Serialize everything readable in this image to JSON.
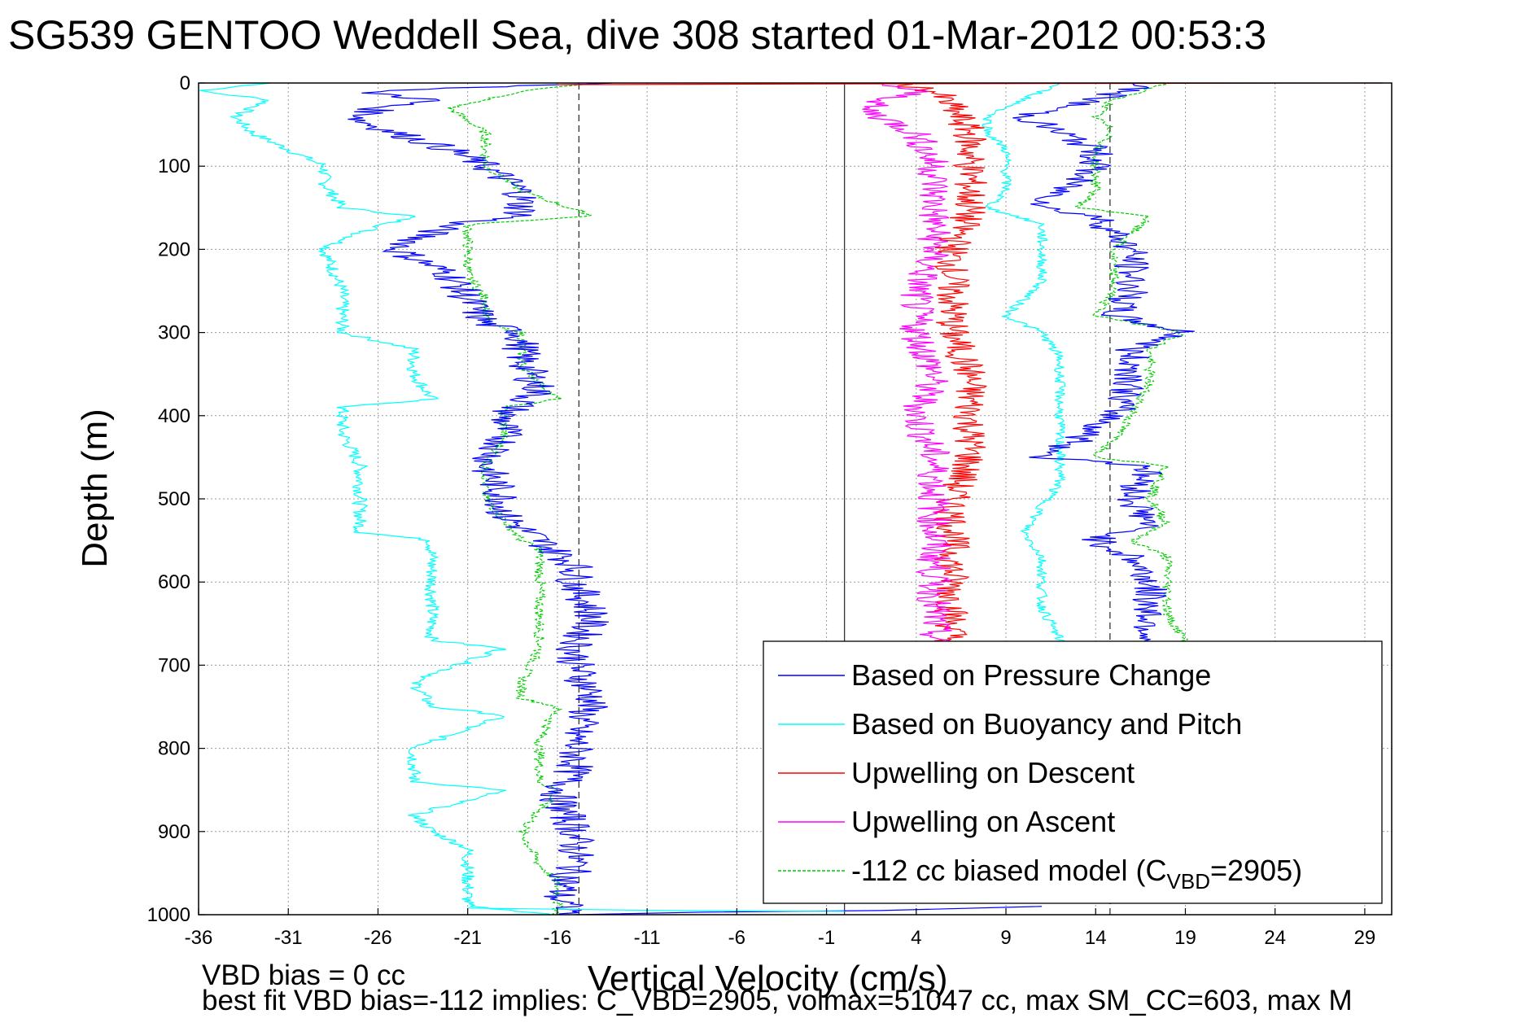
{
  "chart_data": {
    "type": "line",
    "title": "SG539 GENTOO Weddell Sea, dive 308 started 01-Mar-2012 00:53:3",
    "xlabel": "Vertical Velocity (cm/s)",
    "ylabel": "Depth (m)",
    "xlim": [
      -36,
      30.5
    ],
    "ylim": [
      0,
      1000
    ],
    "y_reversed": true,
    "grid": true,
    "x_ticks": [
      "-36",
      "-31",
      "-26",
      "-21",
      "-16",
      "-11",
      "-6",
      "-1",
      "4",
      "9",
      "14",
      "19",
      "24",
      "29"
    ],
    "y_ticks": [
      "0",
      "100",
      "200",
      "300",
      "400",
      "500",
      "600",
      "700",
      "800",
      "900",
      "1000"
    ],
    "legend_position": "bottom-right",
    "reference_lines": [
      {
        "x": -14.8,
        "style": "dashed"
      },
      {
        "x": 0,
        "style": "solid"
      },
      {
        "x": 14.8,
        "style": "dashed"
      }
    ],
    "series": [
      {
        "name": "Based on Pressure Change",
        "color": "#0000ff",
        "depth": [
          0,
          10,
          20,
          30,
          45,
          60,
          80,
          100,
          130,
          160,
          170,
          200,
          230,
          260,
          290,
          300,
          330,
          370,
          400,
          430,
          460,
          500,
          520,
          550,
          580,
          600,
          640,
          680,
          700,
          740,
          780,
          820,
          860,
          900,
          940,
          980,
          1000
        ],
        "values": [
          -13,
          -27,
          -23,
          -26,
          -27,
          -25,
          -22,
          -20,
          -18,
          -18,
          -22,
          -25,
          -22,
          -21,
          -20,
          -18,
          -18,
          -17,
          -19,
          -19,
          -20,
          -19,
          -19,
          -17,
          -15,
          -15,
          -14,
          -15,
          -15,
          -14,
          -15,
          -15,
          -16,
          -15,
          -15,
          -16,
          -15
        ]
      },
      {
        "name": "Based on Buoyancy and Pitch",
        "color": "#00ffff",
        "depth": [
          0,
          10,
          20,
          40,
          60,
          80,
          100,
          120,
          150,
          160,
          180,
          200,
          250,
          300,
          320,
          350,
          380,
          390,
          420,
          460,
          500,
          540,
          550,
          600,
          670,
          680,
          720,
          750,
          760,
          800,
          840,
          850,
          880,
          900,
          920,
          960,
          990,
          1000
        ],
        "values": [
          -32,
          -36,
          -32,
          -34,
          -33,
          -31,
          -29,
          -29,
          -28,
          -24,
          -27,
          -29,
          -28,
          -28,
          -24,
          -24,
          -23,
          -28,
          -28,
          -27,
          -27,
          -27,
          -23,
          -23,
          -23,
          -19,
          -24,
          -23,
          -19,
          -24,
          -24,
          -19,
          -24,
          -23,
          -21,
          -21,
          -21,
          -16
        ]
      },
      {
        "name": "Upwelling on Descent",
        "color": "#ff0000",
        "depth": [
          0,
          10,
          30,
          60,
          100,
          150,
          200,
          250,
          300,
          350,
          400,
          450,
          500,
          550,
          600,
          650,
          680
        ],
        "values": [
          3,
          5,
          6,
          7,
          7,
          7,
          6,
          6,
          6,
          7,
          7,
          7,
          6,
          6,
          6,
          6,
          6
        ]
      },
      {
        "name": "Upwelling on Ascent",
        "color": "#ff00ff",
        "depth": [
          0,
          10,
          30,
          60,
          100,
          150,
          200,
          250,
          300,
          350,
          400,
          450,
          500,
          550,
          600,
          650,
          680
        ],
        "values": [
          2,
          4,
          1,
          4,
          5,
          5,
          5,
          4,
          4,
          5,
          4,
          5,
          5,
          5,
          5,
          5,
          5
        ]
      },
      {
        "name": "-112 cc biased model (C",
        "name_sub": "VBD",
        "name_end": "=2905)",
        "color": "#00cc00",
        "depth": [
          0,
          10,
          30,
          60,
          100,
          130,
          160,
          170,
          200,
          230,
          260,
          290,
          300,
          340,
          380,
          390,
          430,
          460,
          500,
          550,
          560,
          600,
          660,
          680,
          720,
          740,
          750,
          790,
          840,
          850,
          900,
          940,
          960,
          1000
        ],
        "values": [
          -14,
          -18,
          -22,
          -20,
          -20,
          -18,
          -14,
          -21,
          -21,
          -21,
          -20,
          -20,
          -18,
          -18,
          -16,
          -19,
          -19,
          -20,
          -20,
          -18,
          -17,
          -17,
          -17,
          -17,
          -18,
          -18,
          -16,
          -17,
          -17,
          -16,
          -18,
          -17,
          -16,
          -16
        ]
      }
    ],
    "right_group": {
      "blue_depth": [
        0,
        20,
        40,
        60,
        80,
        100,
        130,
        150,
        160,
        200,
        250,
        280,
        300,
        320,
        360,
        400,
        430,
        450,
        460,
        500,
        530,
        550,
        570,
        600,
        640,
        670,
        680
      ],
      "blue_values": [
        17,
        14,
        10,
        12,
        14,
        14,
        12,
        11,
        14,
        16,
        16,
        15,
        19,
        16,
        16,
        15,
        13,
        11,
        17,
        16,
        17,
        14,
        16,
        17,
        17,
        17,
        14
      ],
      "cyan_depth": [
        0,
        40,
        60,
        80,
        100,
        130,
        150,
        170,
        200,
        240,
        280,
        300,
        330,
        370,
        400,
        440,
        480,
        510,
        540,
        570,
        600,
        630,
        670,
        680
      ],
      "cyan_values": [
        12,
        8,
        8,
        9,
        9,
        9,
        8,
        11,
        11,
        11,
        9,
        11,
        12,
        12,
        12,
        12,
        12,
        11,
        10,
        11,
        11,
        11,
        12,
        12
      ],
      "green_depth": [
        0,
        20,
        40,
        60,
        80,
        100,
        130,
        150,
        160,
        200,
        250,
        280,
        300,
        320,
        360,
        400,
        430,
        450,
        460,
        500,
        530,
        550,
        570,
        600,
        640,
        670,
        680
      ],
      "green_values": [
        18,
        15,
        14,
        15,
        14,
        14,
        14,
        13,
        17,
        15,
        15,
        14,
        19,
        17,
        17,
        16,
        15,
        14,
        18,
        17,
        18,
        16,
        18,
        18,
        18,
        19,
        16
      ]
    },
    "annotations": [
      "VBD bias = 0 cc",
      "best fit VBD bias=-112 implies: C_VBD=2905, volmax=51047 cc, max SM_CC=603, max M"
    ]
  }
}
